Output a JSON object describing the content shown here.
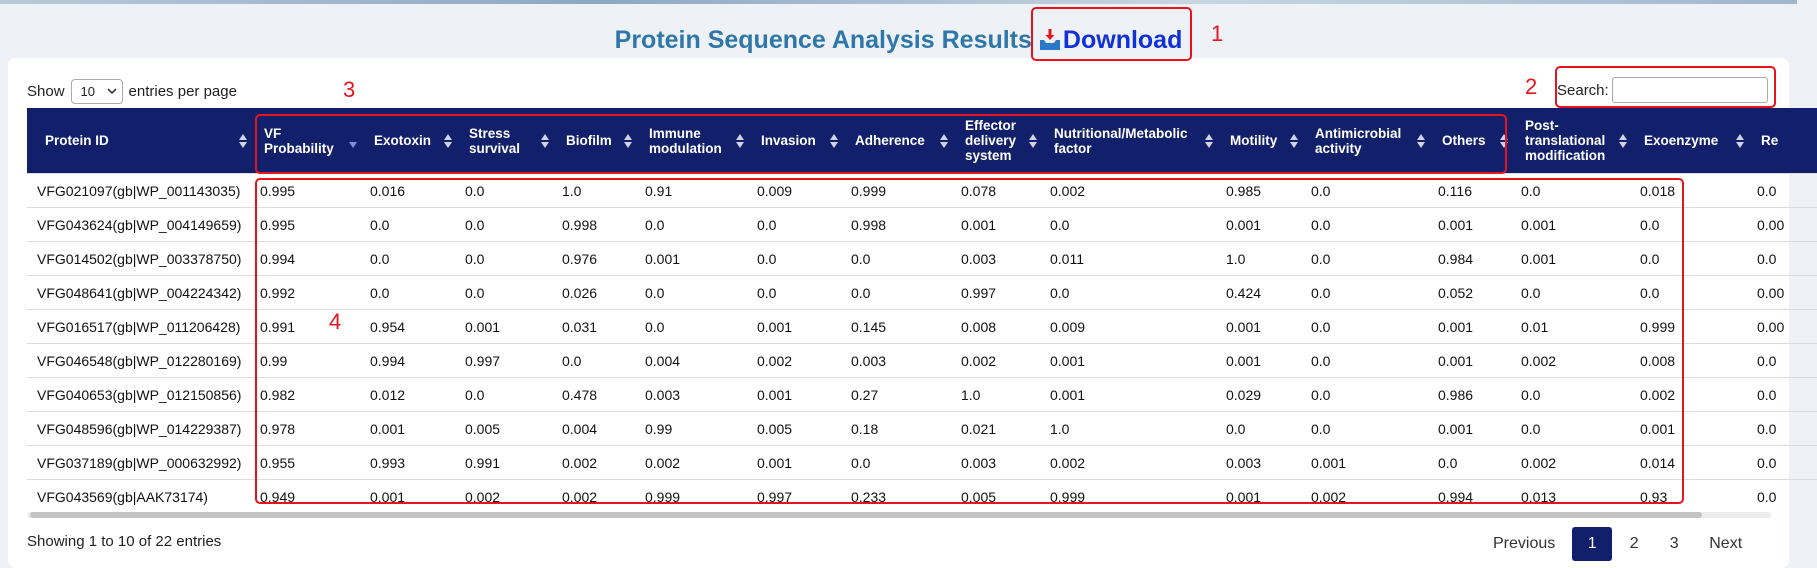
{
  "page": {
    "title": "Protein Sequence Analysis Results",
    "download_label": "Download"
  },
  "controls": {
    "show_label": "Show",
    "page_size": "10",
    "entries_label": "entries per page",
    "search_label": "Search:",
    "search_value": ""
  },
  "table": {
    "headers": [
      "Protein ID",
      "VF Probability",
      "Exotoxin",
      "Stress survival",
      "Biofilm",
      "Immune modulation",
      "Invasion",
      "Adherence",
      "Effector delivery system",
      "Nutritional/Metabolic factor",
      "Motility",
      "Antimicrobial activity",
      "Others",
      "Post-translational modification",
      "Exoenzyme",
      "Re"
    ],
    "sorted_column": "VF Probability",
    "rows": [
      [
        "VFG021097(gb|WP_001143035)",
        "0.995",
        "0.016",
        "0.0",
        "1.0",
        "0.91",
        "0.009",
        "0.999",
        "0.078",
        "0.002",
        "0.985",
        "0.0",
        "0.116",
        "0.0",
        "0.018",
        "0.0"
      ],
      [
        "VFG043624(gb|WP_004149659)",
        "0.995",
        "0.0",
        "0.0",
        "0.998",
        "0.0",
        "0.0",
        "0.998",
        "0.001",
        "0.0",
        "0.001",
        "0.0",
        "0.001",
        "0.001",
        "0.0",
        "0.00"
      ],
      [
        "VFG014502(gb|WP_003378750)",
        "0.994",
        "0.0",
        "0.0",
        "0.976",
        "0.001",
        "0.0",
        "0.0",
        "0.003",
        "0.011",
        "1.0",
        "0.0",
        "0.984",
        "0.001",
        "0.0",
        "0.0"
      ],
      [
        "VFG048641(gb|WP_004224342)",
        "0.992",
        "0.0",
        "0.0",
        "0.026",
        "0.0",
        "0.0",
        "0.0",
        "0.997",
        "0.0",
        "0.424",
        "0.0",
        "0.052",
        "0.0",
        "0.0",
        "0.00"
      ],
      [
        "VFG016517(gb|WP_011206428)",
        "0.991",
        "0.954",
        "0.001",
        "0.031",
        "0.0",
        "0.001",
        "0.145",
        "0.008",
        "0.009",
        "0.001",
        "0.0",
        "0.001",
        "0.01",
        "0.999",
        "0.00"
      ],
      [
        "VFG046548(gb|WP_012280169)",
        "0.99",
        "0.994",
        "0.997",
        "0.0",
        "0.004",
        "0.002",
        "0.003",
        "0.002",
        "0.001",
        "0.001",
        "0.0",
        "0.001",
        "0.002",
        "0.008",
        "0.0"
      ],
      [
        "VFG040653(gb|WP_012150856)",
        "0.982",
        "0.012",
        "0.0",
        "0.478",
        "0.003",
        "0.001",
        "0.27",
        "1.0",
        "0.001",
        "0.029",
        "0.0",
        "0.986",
        "0.0",
        "0.002",
        "0.0"
      ],
      [
        "VFG048596(gb|WP_014229387)",
        "0.978",
        "0.001",
        "0.005",
        "0.004",
        "0.99",
        "0.005",
        "0.18",
        "0.021",
        "1.0",
        "0.0",
        "0.0",
        "0.001",
        "0.0",
        "0.001",
        "0.0"
      ],
      [
        "VFG037189(gb|WP_000632992)",
        "0.955",
        "0.993",
        "0.991",
        "0.002",
        "0.002",
        "0.001",
        "0.0",
        "0.003",
        "0.002",
        "0.003",
        "0.001",
        "0.0",
        "0.002",
        "0.014",
        "0.0"
      ],
      [
        "VFG043569(gb|AAK73174)",
        "0.949",
        "0.001",
        "0.002",
        "0.002",
        "0.999",
        "0.997",
        "0.233",
        "0.005",
        "0.999",
        "0.001",
        "0.002",
        "0.994",
        "0.013",
        "0.93",
        "0.0"
      ]
    ]
  },
  "footer": {
    "info": "Showing 1 to 10 of 22 entries",
    "previous": "Previous",
    "pages": [
      "1",
      "2",
      "3"
    ],
    "current_page": "1",
    "next": "Next"
  },
  "annotations": [
    "1",
    "2",
    "3",
    "4"
  ],
  "colors": {
    "header_bg": "#12206b",
    "title": "#2f77a8",
    "download": "#1030d8",
    "annotation": "#e8141d"
  }
}
